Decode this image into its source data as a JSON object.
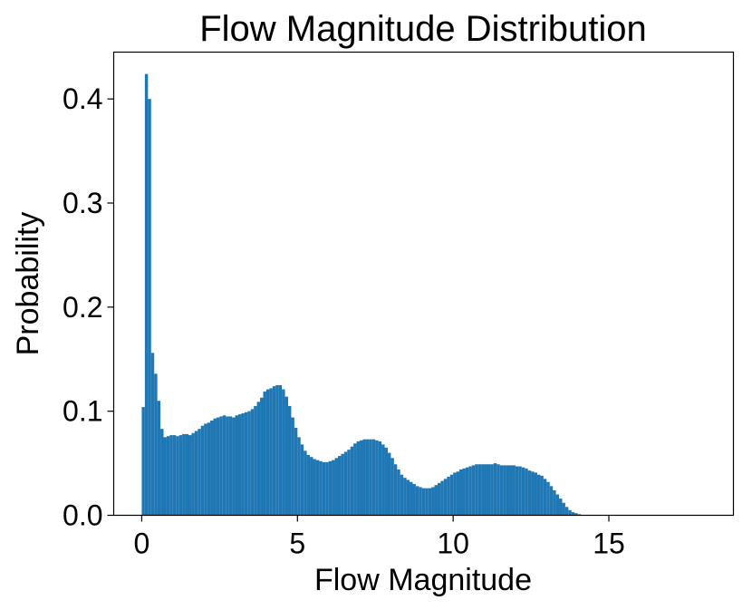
{
  "chart_data": {
    "type": "bar",
    "title": "Flow Magnitude Distribution",
    "xlabel": "Flow Magnitude",
    "ylabel": "Probability",
    "xlim": [
      -0.9,
      19.0
    ],
    "ylim": [
      0,
      0.445
    ],
    "xticks": [
      0,
      5,
      10,
      15
    ],
    "xtick_labels": [
      "0",
      "5",
      "10",
      "15"
    ],
    "yticks": [
      0.0,
      0.1,
      0.2,
      0.3,
      0.4
    ],
    "ytick_labels": [
      "0.0",
      "0.1",
      "0.2",
      "0.3",
      "0.4"
    ],
    "grid": false,
    "legend": "none",
    "bar_color": "#1f77b4",
    "bin_start": 0.05,
    "bin_width": 0.1,
    "values": [
      0.104,
      0.424,
      0.4,
      0.156,
      0.136,
      0.11,
      0.083,
      0.075,
      0.076,
      0.077,
      0.077,
      0.076,
      0.077,
      0.078,
      0.078,
      0.077,
      0.079,
      0.081,
      0.083,
      0.086,
      0.088,
      0.089,
      0.091,
      0.093,
      0.094,
      0.095,
      0.096,
      0.095,
      0.095,
      0.094,
      0.096,
      0.097,
      0.098,
      0.099,
      0.1,
      0.102,
      0.105,
      0.109,
      0.113,
      0.119,
      0.121,
      0.122,
      0.124,
      0.125,
      0.125,
      0.121,
      0.114,
      0.105,
      0.094,
      0.084,
      0.075,
      0.068,
      0.062,
      0.058,
      0.056,
      0.054,
      0.053,
      0.052,
      0.051,
      0.051,
      0.052,
      0.053,
      0.055,
      0.057,
      0.059,
      0.061,
      0.063,
      0.066,
      0.069,
      0.071,
      0.072,
      0.073,
      0.073,
      0.073,
      0.073,
      0.072,
      0.071,
      0.068,
      0.065,
      0.06,
      0.055,
      0.049,
      0.044,
      0.039,
      0.036,
      0.034,
      0.032,
      0.03,
      0.028,
      0.027,
      0.026,
      0.026,
      0.026,
      0.027,
      0.029,
      0.031,
      0.033,
      0.035,
      0.037,
      0.039,
      0.041,
      0.042,
      0.044,
      0.045,
      0.046,
      0.047,
      0.048,
      0.049,
      0.049,
      0.049,
      0.049,
      0.049,
      0.049,
      0.05,
      0.049,
      0.048,
      0.048,
      0.048,
      0.048,
      0.048,
      0.047,
      0.047,
      0.046,
      0.045,
      0.043,
      0.042,
      0.041,
      0.039,
      0.038,
      0.035,
      0.032,
      0.028,
      0.024,
      0.02,
      0.016,
      0.012,
      0.008,
      0.005,
      0.003,
      0.002,
      0.001
    ]
  }
}
